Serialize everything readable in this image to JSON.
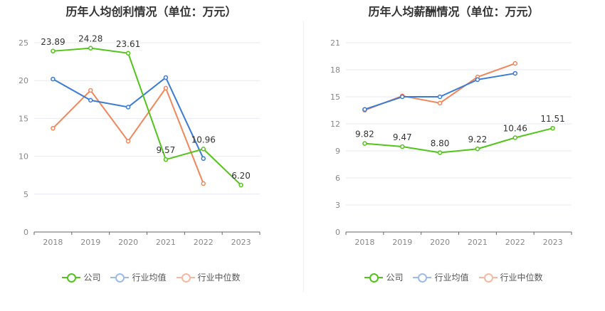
{
  "colors": {
    "company": "#52c41a",
    "industry_avg": "#3a7bd5",
    "industry_median": "#f0875a"
  },
  "chart_data": [
    {
      "id": "profit",
      "type": "line",
      "title": "历年人均创利情况（单位：万元）",
      "categories": [
        "2018",
        "2019",
        "2020",
        "2021",
        "2022",
        "2023"
      ],
      "ylim": [
        0,
        25
      ],
      "yticks": [
        0,
        5,
        10,
        15,
        20,
        25
      ],
      "ytick_labels": [
        "0",
        "5",
        "10",
        "15",
        "20",
        "25"
      ],
      "series": [
        {
          "key": "company",
          "name": "公司",
          "values": [
            23.89,
            24.28,
            23.61,
            9.57,
            10.96,
            6.2
          ],
          "labels": [
            "23.89",
            "24.28",
            "23.61",
            "9.57",
            "10.96",
            "6.20"
          ]
        },
        {
          "key": "industry_avg",
          "name": "行业均值",
          "values": [
            20.2,
            17.4,
            16.5,
            20.4,
            9.7,
            null
          ]
        },
        {
          "key": "industry_median",
          "name": "行业中位数",
          "values": [
            13.7,
            18.7,
            12.0,
            19.0,
            6.4,
            null
          ]
        }
      ]
    },
    {
      "id": "salary",
      "type": "line",
      "title": "历年人均薪酬情况（单位：万元）",
      "categories": [
        "2018",
        "2019",
        "2020",
        "2021",
        "2022",
        "2023"
      ],
      "ylim": [
        0,
        21
      ],
      "yticks": [
        0,
        3,
        6,
        9,
        12,
        15,
        18,
        21
      ],
      "ytick_labels": [
        "0",
        "3",
        "6",
        "9",
        "12",
        "15",
        "18",
        "21"
      ],
      "series": [
        {
          "key": "company",
          "name": "公司",
          "values": [
            9.82,
            9.47,
            8.8,
            9.22,
            10.46,
            11.51
          ],
          "labels": [
            "9.82",
            "9.47",
            "8.80",
            "9.22",
            "10.46",
            "11.51"
          ]
        },
        {
          "key": "industry_avg",
          "name": "行业均值",
          "values": [
            13.6,
            15.0,
            15.0,
            16.9,
            17.6,
            null
          ]
        },
        {
          "key": "industry_median",
          "name": "行业中位数",
          "values": [
            13.5,
            15.1,
            14.3,
            17.2,
            18.7,
            null
          ]
        }
      ]
    }
  ],
  "legend": [
    {
      "key": "company",
      "label": "公司"
    },
    {
      "key": "industry_avg",
      "label": "行业均值"
    },
    {
      "key": "industry_median",
      "label": "行业中位数"
    }
  ]
}
